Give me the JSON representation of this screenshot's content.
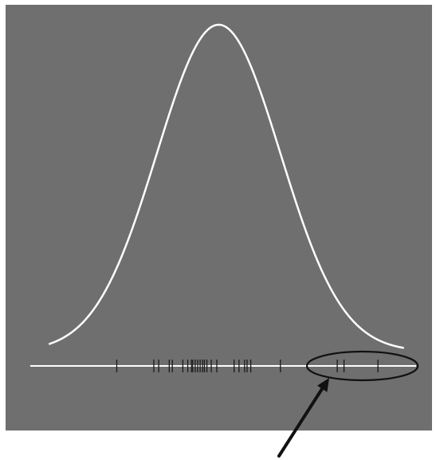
{
  "chart_data": {
    "type": "line",
    "distribution": "normal",
    "mean": 0,
    "std": 1,
    "xlim": [
      -3.05,
      3.3
    ],
    "ylim": [
      0,
      1
    ],
    "grid": false,
    "title": "",
    "xlabel": "",
    "ylabel": "",
    "rug_values": [
      -1.65,
      -1.05,
      -0.97,
      -0.8,
      -0.75,
      -0.58,
      -0.5,
      -0.44,
      -0.42,
      -0.38,
      -0.34,
      -0.3,
      -0.26,
      -0.23,
      -0.19,
      -0.12,
      -0.03,
      0.25,
      0.33,
      0.42,
      0.46,
      0.52,
      1.0,
      1.92,
      2.03,
      2.58
    ],
    "highlighted_outliers": [
      1.92,
      2.03,
      2.58
    ]
  },
  "colors": {
    "background": "#6f6f6f",
    "curve": "#ffffff",
    "baseline": "#ffffff",
    "rug": "#1a1a1a",
    "ellipse": "#111111",
    "arrow": "#111111"
  }
}
